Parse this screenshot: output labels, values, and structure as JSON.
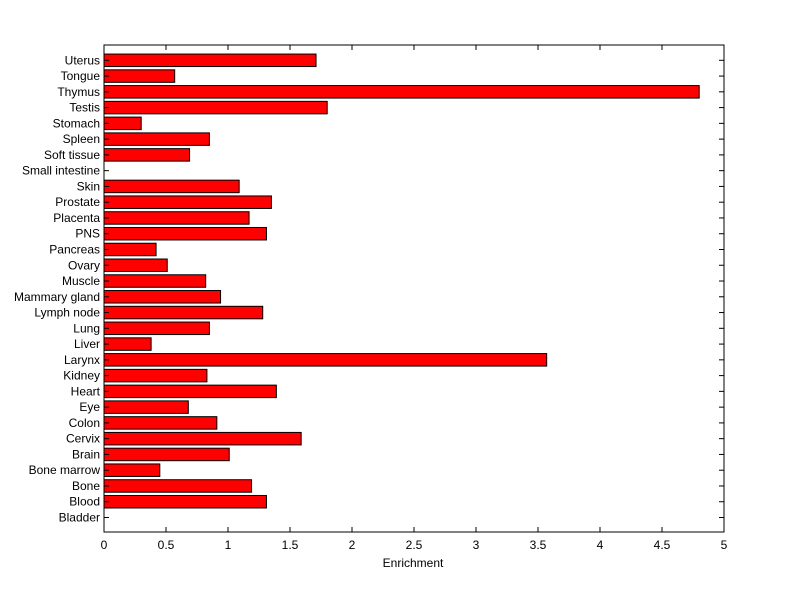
{
  "chart_data": {
    "type": "bar",
    "orientation": "horizontal",
    "title": "",
    "xlabel": "Enrichment",
    "ylabel": "",
    "xlim": [
      0,
      5
    ],
    "xticks": [
      "0",
      "0.5",
      "1",
      "1.5",
      "2",
      "2.5",
      "3",
      "3.5",
      "4",
      "4.5",
      "5"
    ],
    "grid": false,
    "bar_color": "#ff0000",
    "bar_edge_color": "#000000",
    "categories": [
      "Bladder",
      "Blood",
      "Bone",
      "Bone marrow",
      "Brain",
      "Cervix",
      "Colon",
      "Eye",
      "Heart",
      "Kidney",
      "Larynx",
      "Liver",
      "Lung",
      "Lymph node",
      "Mammary gland",
      "Muscle",
      "Ovary",
      "Pancreas",
      "PNS",
      "Placenta",
      "Prostate",
      "Skin",
      "Small intestine",
      "Soft tissue",
      "Spleen",
      "Stomach",
      "Testis",
      "Thymus",
      "Tongue",
      "Uterus"
    ],
    "values": [
      0,
      1.31,
      1.19,
      0.45,
      1.01,
      1.59,
      0.91,
      0.68,
      1.39,
      0.83,
      3.57,
      0.38,
      0.85,
      1.28,
      0.94,
      0.82,
      0.51,
      0.42,
      1.31,
      1.17,
      1.35,
      1.09,
      0,
      0.69,
      0.85,
      0.3,
      1.8,
      4.8,
      0.57,
      1.71
    ]
  }
}
